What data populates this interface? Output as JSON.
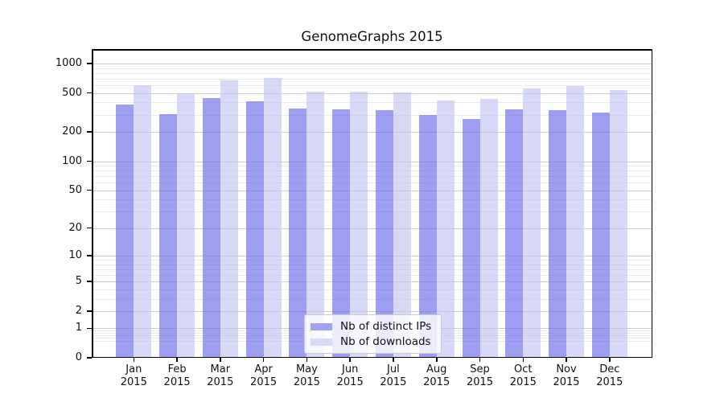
{
  "title": "GenomeGraphs 2015",
  "legend": {
    "items": [
      {
        "label": "Nb of distinct IPs",
        "swatch_color": "#a2a2f2"
      },
      {
        "label": "Nb of downloads",
        "swatch_color": "#dadaf8"
      }
    ]
  },
  "colors": {
    "bar_ips_fill": "rgba(100,100,233,0.62)",
    "bar_downloads_fill": "rgba(192,192,242,0.62)",
    "grid_major": "#cdcdcd",
    "grid_minor": "#ebebeb",
    "axis": "#000000",
    "background": "#ffffff"
  },
  "x_axis": {
    "months": [
      "Jan",
      "Feb",
      "Mar",
      "Apr",
      "May",
      "Jun",
      "Jul",
      "Aug",
      "Sep",
      "Oct",
      "Nov",
      "Dec"
    ],
    "year": "2015"
  },
  "y_axis": {
    "tick_values": [
      1000,
      500,
      200,
      100,
      50,
      20,
      10,
      5,
      2,
      1,
      0
    ],
    "minor_gridline_values": [
      900,
      800,
      700,
      600,
      400,
      300,
      90,
      80,
      70,
      60,
      40,
      30,
      9,
      8,
      7,
      6,
      4,
      3,
      0.9,
      0.8,
      0.7,
      0.6,
      0.5
    ]
  },
  "chart_data": {
    "type": "bar",
    "title": "GenomeGraphs 2015",
    "categories": [
      "Jan 2015",
      "Feb 2015",
      "Mar 2015",
      "Apr 2015",
      "May 2015",
      "Jun 2015",
      "Jul 2015",
      "Aug 2015",
      "Sep 2015",
      "Oct 2015",
      "Nov 2015",
      "Dec 2015"
    ],
    "series": [
      {
        "name": "Nb of distinct IPs",
        "values": [
          382,
          302,
          446,
          414,
          347,
          342,
          333,
          298,
          272,
          343,
          332,
          317
        ]
      },
      {
        "name": "Nb of downloads",
        "values": [
          604,
          488,
          676,
          716,
          513,
          516,
          507,
          416,
          432,
          560,
          593,
          539
        ]
      }
    ],
    "xlabel": "",
    "ylabel": "",
    "y_scale": "log10(1+y)",
    "y_ticks": [
      1000,
      500,
      200,
      100,
      50,
      20,
      10,
      5,
      2,
      1,
      0
    ],
    "ylim": [
      0,
      1400
    ],
    "grid": true,
    "legend_position": "inside-lower-center"
  }
}
